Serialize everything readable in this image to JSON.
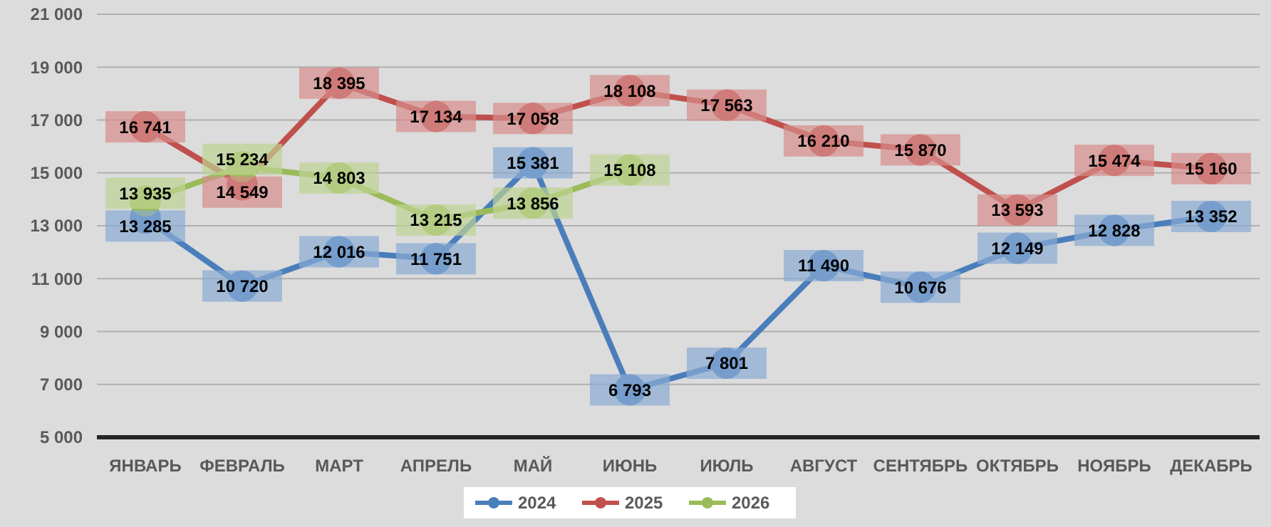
{
  "chart_data": {
    "type": "line",
    "categories": [
      "ЯНВАРЬ",
      "ФЕВРАЛЬ",
      "МАРТ",
      "АПРЕЛЬ",
      "МАЙ",
      "ИЮНЬ",
      "ИЮЛЬ",
      "АВГУСТ",
      "СЕНТЯБРЬ",
      "ОКТЯБРЬ",
      "НОЯБРЬ",
      "ДЕКАБРЬ"
    ],
    "series": [
      {
        "name": "2024",
        "color": "#4a7ebb",
        "values": [
          13285,
          10720,
          12016,
          11751,
          15381,
          6793,
          7801,
          11490,
          10676,
          12149,
          12828,
          13352
        ]
      },
      {
        "name": "2025",
        "color": "#c0504d",
        "values": [
          16741,
          14549,
          18395,
          17134,
          17058,
          18108,
          17563,
          16210,
          15870,
          13593,
          15474,
          15160
        ]
      },
      {
        "name": "2026",
        "color": "#9bbb59",
        "values": [
          13935,
          15234,
          14803,
          13215,
          13856,
          15108,
          null,
          null,
          null,
          null,
          null,
          null
        ]
      }
    ],
    "ylim": [
      5000,
      21000
    ],
    "yticks": [
      {
        "value": 5000,
        "label": "5 000"
      },
      {
        "value": 7000,
        "label": "7 000"
      },
      {
        "value": 9000,
        "label": "9 000"
      },
      {
        "value": 11000,
        "label": "11 000"
      },
      {
        "value": 13000,
        "label": "13 000"
      },
      {
        "value": 15000,
        "label": "15 000"
      },
      {
        "value": 17000,
        "label": "17 000"
      },
      {
        "value": 19000,
        "label": "19 000"
      },
      {
        "value": 21000,
        "label": "21 000"
      }
    ],
    "grid": "y",
    "legend": "bottom",
    "marker": "circle",
    "line_style": "solid",
    "data_labels": true
  }
}
